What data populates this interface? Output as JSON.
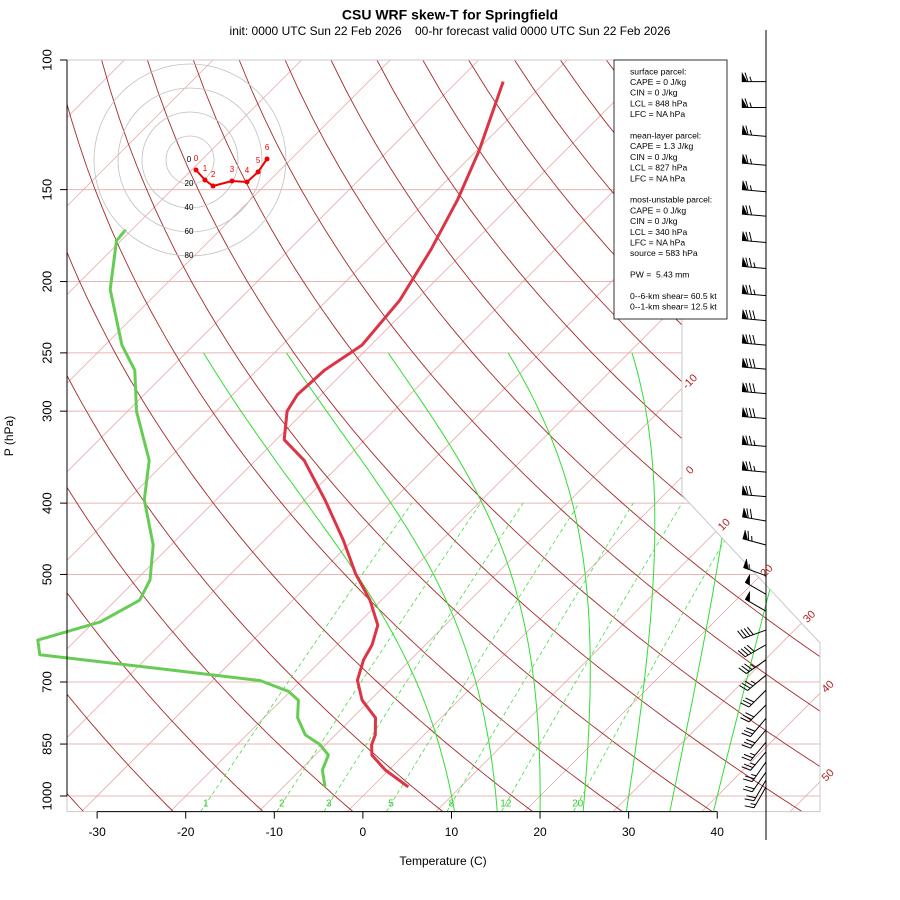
{
  "chart_data": {
    "type": "skewt",
    "title": "CSU WRF skew-T for Springfield",
    "subtitle": "init: 0000 UTC Sun 22 Feb 2026    00-hr forecast valid 0000 UTC Sun 22 Feb 2026",
    "xlabel": "Temperature (C)",
    "ylabel": "P (hPa)",
    "log_y": true,
    "xlim": [
      -33.4,
      51.6
    ],
    "ylim": [
      1050,
      100
    ],
    "xticks": [
      -30,
      -20,
      -10,
      0,
      10,
      20,
      30,
      40
    ],
    "yticks": [
      100,
      150,
      200,
      250,
      300,
      400,
      500,
      700,
      850,
      1000
    ],
    "series": [
      {
        "color": "#dc3545",
        "pressure": [
          972,
          922,
          880,
          852,
          826,
          783,
          741,
          696,
          653,
          624,
          586,
          542,
          499,
          449,
          396,
          350,
          328,
          300,
          285,
          264,
          244,
          212,
          181,
          155,
          133,
          107
        ],
        "values": [
          4.1,
          -0.4,
          -3.6,
          -4.8,
          -5.5,
          -7.4,
          -10.9,
          -13.7,
          -15.3,
          -16.0,
          -17.6,
          -21.3,
          -25.9,
          -31.1,
          -37.7,
          -44.5,
          -49.1,
          -52.0,
          -52.7,
          -52.4,
          -51.0,
          -51.8,
          -54.0,
          -56.6,
          -59.7,
          -64.8
        ]
      },
      {
        "color": "#66cc55",
        "pressure": [
          972,
          922,
          880,
          852,
          826,
          783,
          741,
          721,
          697,
          674,
          643,
          614,
          580,
          542,
          509,
          456,
          396,
          350,
          300,
          264,
          244,
          205,
          176,
          170
        ],
        "values": [
          -5.3,
          -7.5,
          -8.5,
          -10.6,
          -13.4,
          -16.2,
          -18.1,
          -20.2,
          -24.6,
          -36.0,
          -52.4,
          -54.3,
          -49.3,
          -47.3,
          -48.4,
          -52.0,
          -58.1,
          -62.0,
          -69.0,
          -73.8,
          -78.1,
          -85.7,
          -90.5,
          -90.7
        ]
      }
    ],
    "isotherm_labels": [
      -10,
      0,
      10,
      20,
      30,
      40,
      50
    ],
    "mixing_ratio_labels": [
      1,
      2,
      3,
      5,
      8,
      12,
      20
    ],
    "wind": {
      "pressure": [
        107,
        116,
        127,
        139,
        151,
        163,
        177,
        192,
        209,
        226,
        244,
        263,
        284,
        307,
        335,
        363,
        392,
        423,
        456,
        502,
        532,
        561,
        595,
        623,
        653,
        685,
        718,
        752,
        784,
        813,
        845,
        871,
        899,
        928,
        951,
        972
      ],
      "speed": [
        65,
        65,
        65,
        65,
        65,
        70,
        70,
        75,
        75,
        80,
        80,
        80,
        80,
        80,
        75,
        75,
        70,
        70,
        65,
        55,
        50,
        50,
        40,
        40,
        35,
        35,
        30,
        30,
        30,
        30,
        25,
        25,
        25,
        20,
        20,
        15
      ],
      "direction": [
        270,
        270,
        275,
        275,
        275,
        275,
        275,
        275,
        275,
        275,
        275,
        275,
        275,
        275,
        275,
        275,
        275,
        280,
        285,
        290,
        300,
        300,
        250,
        240,
        235,
        230,
        225,
        225,
        220,
        220,
        220,
        220,
        215,
        215,
        210,
        210
      ]
    },
    "hodograph": {
      "rings": [
        0,
        20,
        40,
        60,
        80
      ],
      "heights": [
        0,
        1,
        2,
        3,
        4,
        5,
        6
      ],
      "u": [
        5,
        12.5,
        19.2,
        35,
        47.5,
        56.7,
        64.2
      ],
      "v": [
        -8.3,
        -16.7,
        -21.7,
        -17.5,
        -18.3,
        -10,
        0.8
      ]
    },
    "info": [
      [
        "surface parcel:",
        "CAPE = 0 J/kg",
        "CIN = 0 J/kg",
        "LCL = 848 hPa",
        "LFC = NA hPa"
      ],
      [
        "mean-layer parcel:",
        "CAPE = 1.3 J/kg",
        "CIN = 0 J/kg",
        "LCL = 827 hPa",
        "LFC = NA hPa"
      ],
      [
        "most-unstable parcel:",
        "CAPE = 0 J/kg",
        "CIN = 0 J/kg",
        "LCL = 340 hPa",
        "LFC = NA hPa",
        "source = 583 hPa"
      ],
      [
        "PW =  5.43 mm"
      ],
      [
        "0--6-km shear= 60.5 kt",
        "0--1-km shear= 12.5 kt"
      ]
    ]
  }
}
